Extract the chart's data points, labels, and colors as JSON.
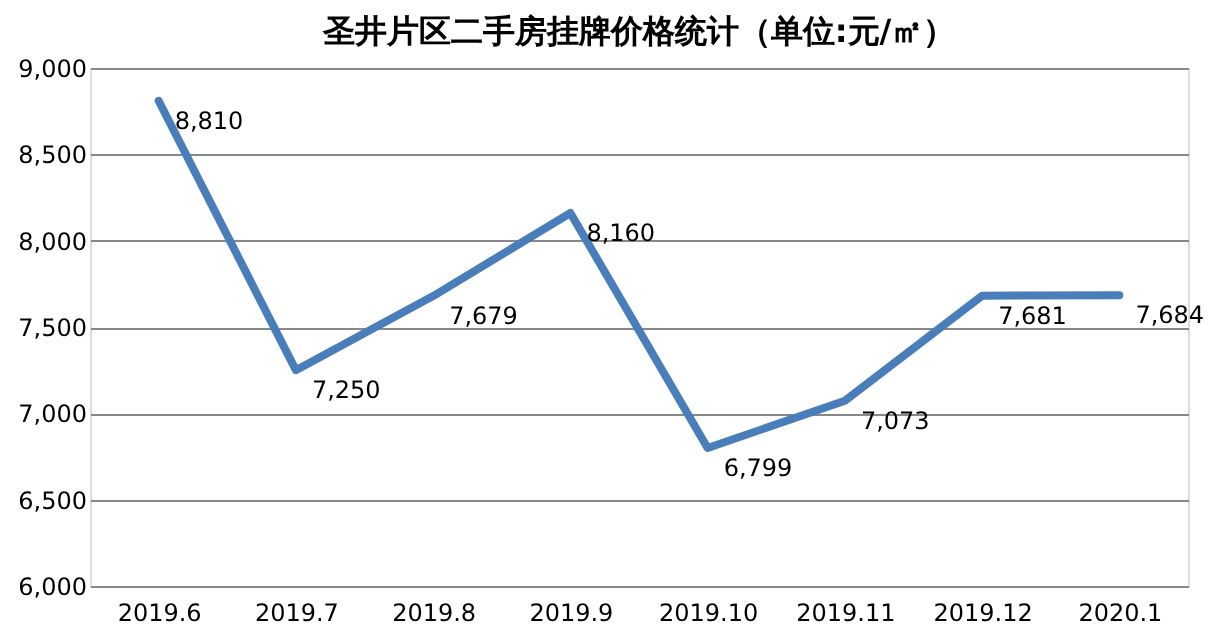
{
  "chart_data": {
    "type": "line",
    "title": "圣井片区二手房挂牌价格统计（单位:元/㎡）",
    "categories": [
      "2019.6",
      "2019.7",
      "2019.8",
      "2019.9",
      "2019.10",
      "2019.11",
      "2019.12",
      "2020.1"
    ],
    "series": [
      {
        "color": "#4a7ebb",
        "values": [
          8810,
          7250,
          7679,
          8160,
          6799,
          7073,
          7681,
          7684
        ]
      }
    ],
    "value_labels": [
      "8,810",
      "7,250",
      "7,679",
      "8,160",
      "6,799",
      "7,073",
      "7,681",
      "7,684"
    ],
    "ylim": [
      6000,
      9000
    ],
    "yticks": [
      {
        "value": 6000,
        "label": "6,000"
      },
      {
        "value": 6500,
        "label": "6,500"
      },
      {
        "value": 7000,
        "label": "7,000"
      },
      {
        "value": 7500,
        "label": "7,500"
      },
      {
        "value": 8000,
        "label": "8,000"
      },
      {
        "value": 8500,
        "label": "8,500"
      },
      {
        "value": 9000,
        "label": "9,000"
      }
    ],
    "grid": "y",
    "marker": "none",
    "line_style": "solid"
  }
}
